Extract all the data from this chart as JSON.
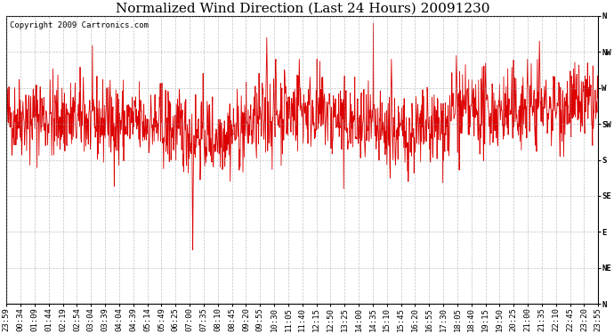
{
  "title": "Normalized Wind Direction (Last 24 Hours) 20091230",
  "copyright": "Copyright 2009 Cartronics.com",
  "line_color": "#dd0000",
  "background_color": "#ffffff",
  "grid_color": "#999999",
  "ytick_labels": [
    "N",
    "NW",
    "W",
    "SW",
    "S",
    "SE",
    "E",
    "NE",
    "N"
  ],
  "ytick_values": [
    8,
    7,
    6,
    5,
    4,
    3,
    2,
    1,
    0
  ],
  "ylim": [
    0,
    8
  ],
  "xtick_labels": [
    "23:59",
    "00:34",
    "01:09",
    "01:44",
    "02:19",
    "02:54",
    "03:04",
    "03:39",
    "04:04",
    "04:39",
    "05:14",
    "05:49",
    "06:25",
    "07:00",
    "07:35",
    "08:10",
    "08:45",
    "09:20",
    "09:55",
    "10:30",
    "11:05",
    "11:40",
    "12:15",
    "12:50",
    "13:25",
    "14:00",
    "14:35",
    "15:10",
    "15:45",
    "16:20",
    "16:55",
    "17:30",
    "18:05",
    "18:40",
    "19:15",
    "19:50",
    "20:25",
    "21:00",
    "21:35",
    "22:10",
    "22:45",
    "23:20",
    "23:55"
  ],
  "num_points": 1440,
  "seed": 42,
  "base_value": 5.0,
  "noise_std": 0.55,
  "title_fontsize": 11,
  "axis_fontsize": 6.5,
  "copyright_fontsize": 6.5,
  "figwidth": 6.9,
  "figheight": 3.75,
  "dpi": 100
}
